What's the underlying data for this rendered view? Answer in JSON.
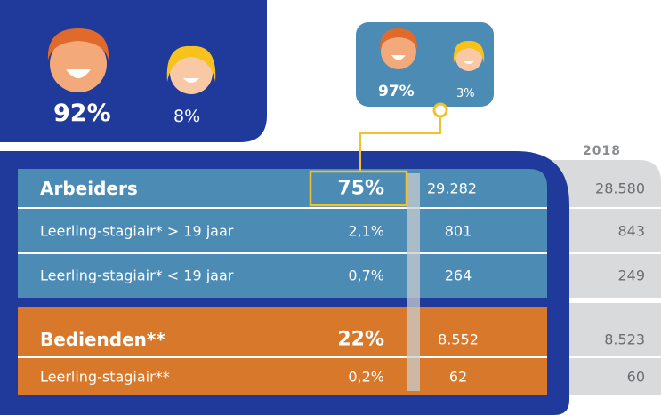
{
  "gender_main": {
    "male": "92%",
    "female": "8%"
  },
  "gender_callout": {
    "male": "97%",
    "female": "3%"
  },
  "table": {
    "year_header": "2018",
    "rows": [
      [
        "Arbeiders",
        "75%",
        "29.282",
        "28.580"
      ],
      [
        "Leerling-stagiair* > 19 jaar",
        "2,1%",
        "801",
        "843"
      ],
      [
        "Leerling-stagiair* < 19 jaar",
        "0,7%",
        "264",
        "249"
      ],
      [
        "Bedienden**",
        "22%",
        "8.552",
        "8.523"
      ],
      [
        "Leerling-stagiair**",
        "0,2%",
        "62",
        "60"
      ]
    ]
  }
}
